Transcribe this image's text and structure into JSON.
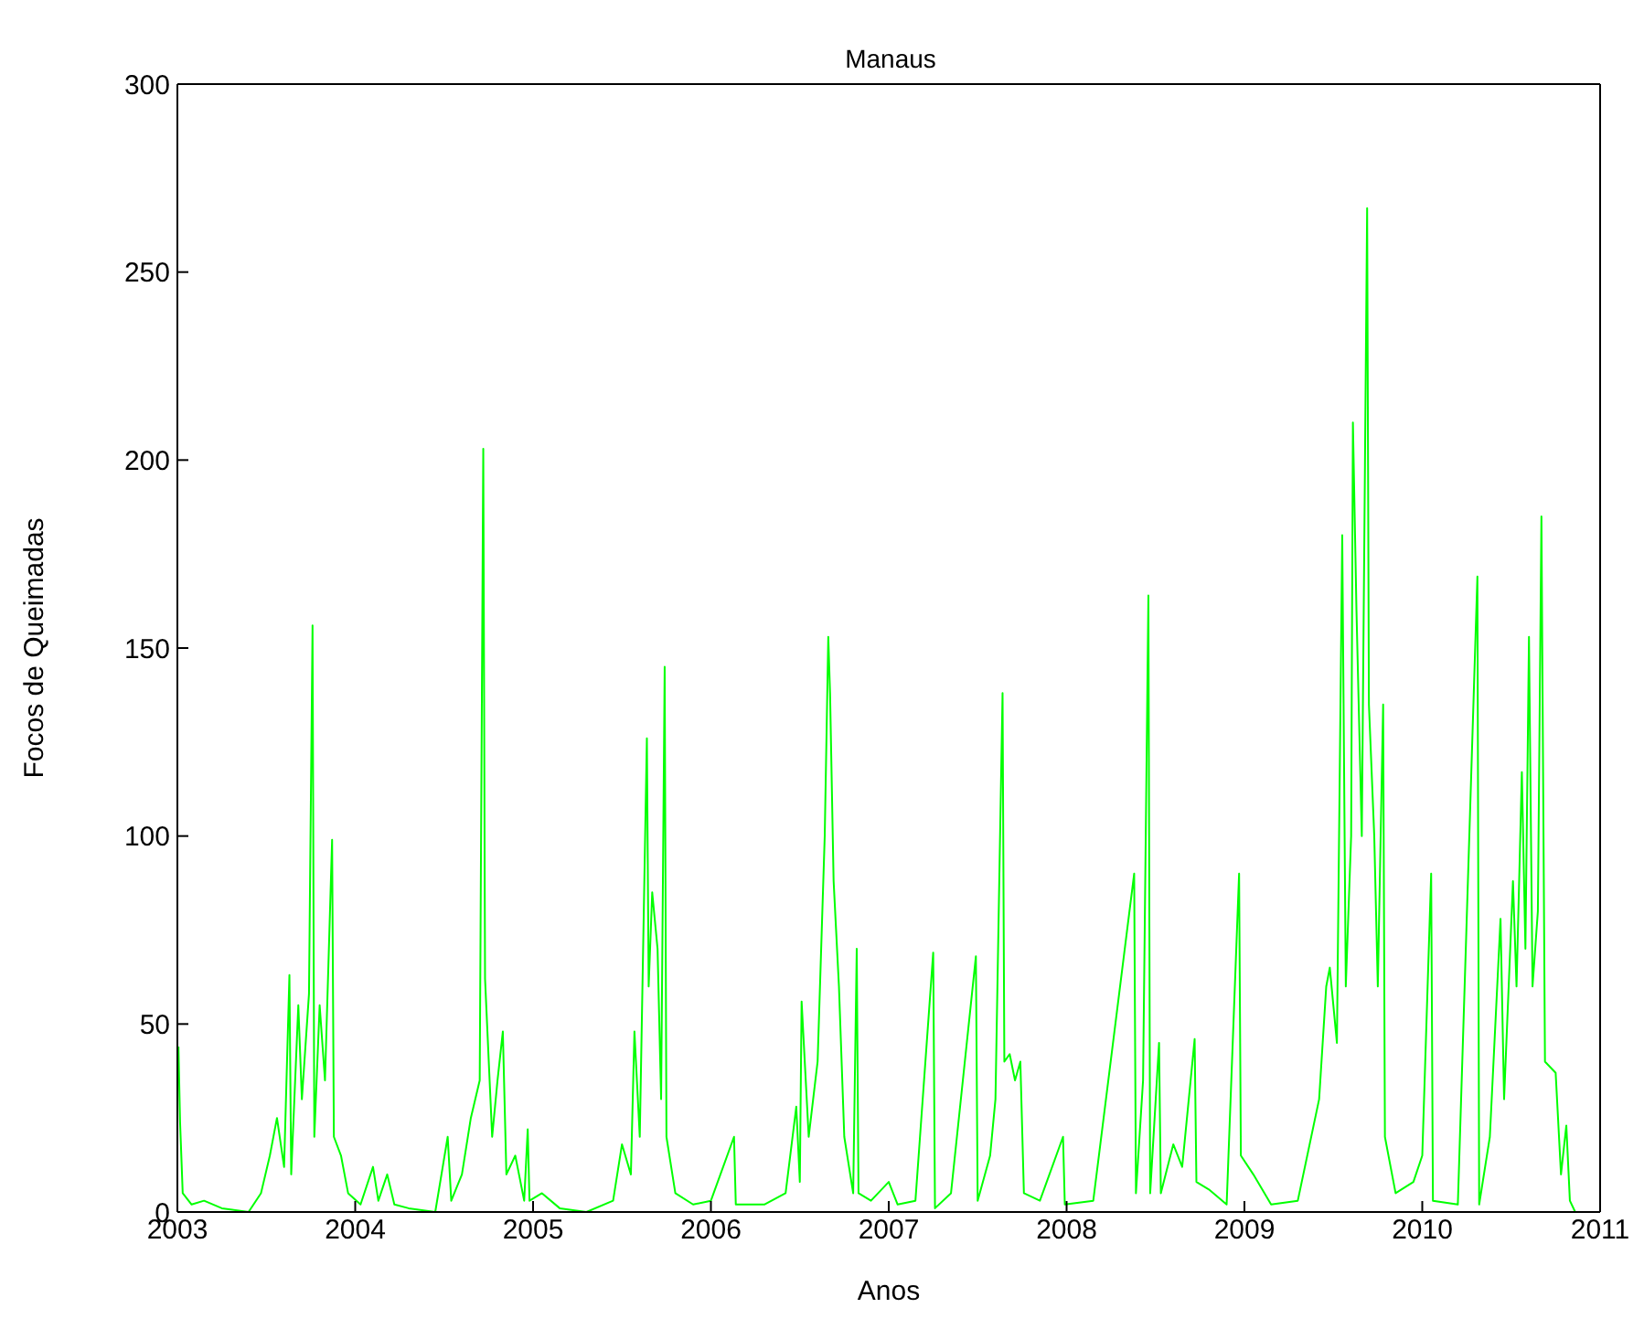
{
  "chart_data": {
    "type": "line",
    "title": "Manaus",
    "xlabel": "Anos",
    "ylabel": "Focos de Queimadas",
    "x": [
      2003.006,
      2003.015,
      2003.03,
      2003.08,
      2003.15,
      2003.25,
      2003.4,
      2003.47,
      2003.52,
      2003.56,
      2003.6,
      2003.63,
      2003.64,
      2003.68,
      2003.7,
      2003.74,
      2003.76,
      2003.77,
      2003.8,
      2003.83,
      2003.87,
      2003.88,
      2003.92,
      2003.96,
      2004.03,
      2004.1,
      2004.13,
      2004.18,
      2004.22,
      2004.3,
      2004.45,
      2004.52,
      2004.54,
      2004.6,
      2004.65,
      2004.7,
      2004.72,
      2004.73,
      2004.77,
      2004.8,
      2004.83,
      2004.85,
      2004.9,
      2004.95,
      2004.97,
      2004.98,
      2005.05,
      2005.15,
      2005.3,
      2005.45,
      2005.5,
      2005.55,
      2005.57,
      2005.6,
      2005.64,
      2005.65,
      2005.67,
      2005.7,
      2005.72,
      2005.74,
      2005.75,
      2005.8,
      2005.9,
      2006.0,
      2006.13,
      2006.14,
      2006.3,
      2006.42,
      2006.48,
      2006.5,
      2006.51,
      2006.55,
      2006.6,
      2006.64,
      2006.66,
      2006.67,
      2006.69,
      2006.72,
      2006.75,
      2006.8,
      2006.82,
      2006.83,
      2006.9,
      2007.0,
      2007.05,
      2007.15,
      2007.25,
      2007.26,
      2007.35,
      2007.49,
      2007.5,
      2007.57,
      2007.6,
      2007.64,
      2007.65,
      2007.68,
      2007.71,
      2007.74,
      2007.76,
      2007.85,
      2007.98,
      2007.99,
      2008.15,
      2008.38,
      2008.39,
      2008.43,
      2008.46,
      2008.47,
      2008.52,
      2008.53,
      2008.6,
      2008.65,
      2008.72,
      2008.73,
      2008.8,
      2008.9,
      2008.97,
      2008.98,
      2009.05,
      2009.15,
      2009.3,
      2009.42,
      2009.46,
      2009.48,
      2009.52,
      2009.55,
      2009.57,
      2009.6,
      2009.61,
      2009.63,
      2009.66,
      2009.69,
      2009.7,
      2009.73,
      2009.75,
      2009.78,
      2009.79,
      2009.85,
      2009.95,
      2010.0,
      2010.05,
      2010.06,
      2010.2,
      2010.31,
      2010.32,
      2010.38,
      2010.44,
      2010.46,
      2010.51,
      2010.53,
      2010.56,
      2010.58,
      2010.6,
      2010.62,
      2010.65,
      2010.67,
      2010.69,
      2010.75,
      2010.78,
      2010.81,
      2010.83,
      2010.86
    ],
    "series": [
      {
        "color": "#00ff00",
        "values": [
          44,
          24,
          5,
          2,
          3,
          1,
          0,
          5,
          15,
          25,
          12,
          63,
          10,
          55,
          30,
          58,
          156,
          20,
          55,
          35,
          99,
          20,
          15,
          5,
          2,
          12,
          3,
          10,
          2,
          1,
          0,
          20,
          3,
          10,
          25,
          35,
          203,
          62,
          20,
          35,
          48,
          10,
          15,
          3,
          22,
          3,
          5,
          1,
          0,
          3,
          18,
          10,
          48,
          20,
          126,
          60,
          85,
          70,
          30,
          145,
          20,
          5,
          2,
          3,
          20,
          2,
          2,
          5,
          28,
          8,
          56,
          20,
          40,
          100,
          153,
          138,
          88,
          60,
          20,
          5,
          70,
          5,
          3,
          8,
          2,
          3,
          69,
          1,
          5,
          68,
          3,
          15,
          30,
          138,
          40,
          42,
          35,
          40,
          5,
          3,
          20,
          2,
          3,
          90,
          5,
          35,
          164,
          5,
          45,
          5,
          18,
          12,
          46,
          8,
          6,
          2,
          90,
          15,
          10,
          2,
          3,
          30,
          60,
          65,
          45,
          180,
          60,
          100,
          210,
          160,
          100,
          267,
          135,
          100,
          60,
          135,
          20,
          5,
          8,
          15,
          90,
          3,
          2,
          169,
          2,
          20,
          78,
          30,
          88,
          60,
          117,
          70,
          153,
          60,
          80,
          185,
          40,
          37,
          10,
          23,
          3,
          0
        ]
      }
    ],
    "xlim": [
      2003,
      2011
    ],
    "xticks": [
      2003,
      2004,
      2005,
      2006,
      2007,
      2008,
      2009,
      2010,
      2011
    ],
    "ylim": [
      0,
      300
    ],
    "yticks": [
      0,
      50,
      100,
      150,
      200,
      250,
      300
    ],
    "grid": false,
    "line_style": "solid"
  }
}
